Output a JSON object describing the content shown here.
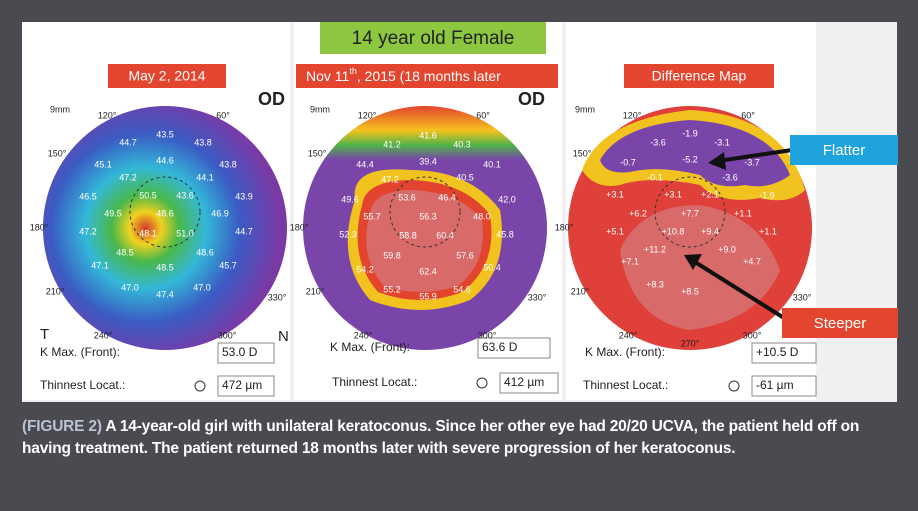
{
  "header": {
    "title": "14 year old Female"
  },
  "panels": [
    {
      "label": "May 2, 2014",
      "eye": "OD",
      "scale": "9mm",
      "side_left": "T",
      "side_right": "N",
      "angles": [
        "120°",
        "60°",
        "150°",
        "180°",
        "210°",
        "240°",
        "300°",
        "330°"
      ],
      "values": [
        "43.5",
        "44.7",
        "43.8",
        "45.1",
        "44.6",
        "43.8",
        "47.2",
        "44.1",
        "50.5",
        "43.6",
        "46.5",
        "49.5",
        "48.6",
        "46.9",
        "43.9",
        "48.1",
        "51.0",
        "47.2",
        "44.7",
        "48.5",
        "48.6",
        "47.1",
        "48.5",
        "45.7",
        "47.0",
        "47.0",
        "47.4"
      ],
      "kmax_label": "K Max. (Front):",
      "kmax_value": "53.0 D",
      "thinnest_label": "Thinnest Locat.:",
      "thinnest_value": "472 µm"
    },
    {
      "label": "Nov 11",
      "label_sup": "th",
      "label_rest": ", 2015 (18 months later",
      "eye": "OD",
      "scale": "9mm",
      "angles": [
        "120°",
        "60°",
        "150°",
        "180°",
        "210°",
        "240°",
        "300°",
        "330°"
      ],
      "values": [
        "41.6",
        "41.2",
        "40.3",
        "44.4",
        "39.4",
        "40.1",
        "47.2",
        "40.5",
        "49.6",
        "53.6",
        "46.4",
        "42.0",
        "55.7",
        "56.3",
        "48.0",
        "52.3",
        "58.8",
        "60.4",
        "45.8",
        "59.8",
        "57.6",
        "54.2",
        "62.4",
        "50.4",
        "55.2",
        "54.6",
        "55.9"
      ],
      "kmax_label": "K Max. (Front):",
      "kmax_value": "63.6 D",
      "thinnest_label": "Thinnest Locat.:",
      "thinnest_value": "412 µm"
    },
    {
      "label": "Difference Map",
      "scale": "9mm",
      "angles": [
        "120°",
        "60°",
        "150°",
        "180°",
        "210°",
        "240°",
        "270°",
        "300°",
        "330°"
      ],
      "values": [
        "-1.9",
        "-3.6",
        "-3.1",
        "-0.7",
        "-5.2",
        "-3.7",
        "-0.1",
        "-3.6",
        "+3.1",
        "+3.1",
        "+2.1",
        "-1.9",
        "+6.2",
        "+7.7",
        "+1.1",
        "+5.1",
        "+10.8",
        "+9.4",
        "+1.1",
        "+11.2",
        "+9.0",
        "+7.1",
        "+4.7",
        "+8.3",
        "+8.5"
      ],
      "kmax_label": "K Max. (Front):",
      "kmax_value": "+10.5 D",
      "thinnest_label": "Thinnest Locat.:",
      "thinnest_value": "-61 µm"
    }
  ],
  "callouts": {
    "flatter": "Flatter",
    "steeper": "Steeper"
  },
  "caption": {
    "figure": "(FIGURE 2)",
    "text": "A 14-year-old girl with unilateral keratoconus. Since her other eye had 20/20 UCVA, the patient held off on having treatment. The patient returned 18 months later with severe progression of her keratoconus."
  }
}
